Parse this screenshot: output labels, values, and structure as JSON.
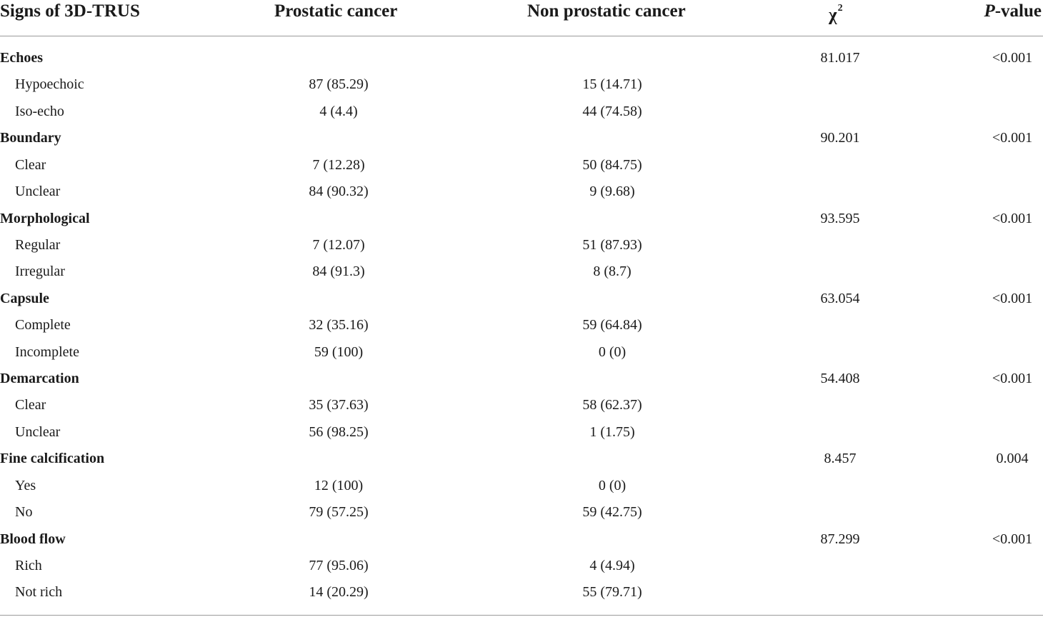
{
  "columns": {
    "signs": "Signs of 3D-TRUS",
    "prostatic": "Prostatic cancer",
    "non_prostatic": "Non prostatic cancer",
    "chi": "χ",
    "chi_sup": "2",
    "p_italic": "P",
    "p_rest": "-value"
  },
  "groups": [
    {
      "label": "Echoes",
      "chi": "81.017",
      "p": "<0.001",
      "rows": [
        {
          "label": "Hypoechoic",
          "pc": "87 (85.29)",
          "npc": "15 (14.71)"
        },
        {
          "label": "Iso-echo",
          "pc": "4 (4.4)",
          "npc": "44 (74.58)"
        }
      ]
    },
    {
      "label": "Boundary",
      "chi": "90.201",
      "p": "<0.001",
      "rows": [
        {
          "label": "Clear",
          "pc": "7 (12.28)",
          "npc": "50 (84.75)"
        },
        {
          "label": "Unclear",
          "pc": "84 (90.32)",
          "npc": "9 (9.68)"
        }
      ]
    },
    {
      "label": "Morphological",
      "chi": "93.595",
      "p": "<0.001",
      "rows": [
        {
          "label": "Regular",
          "pc": "7 (12.07)",
          "npc": "51 (87.93)"
        },
        {
          "label": "Irregular",
          "pc": "84 (91.3)",
          "npc": "8 (8.7)"
        }
      ]
    },
    {
      "label": "Capsule",
      "chi": "63.054",
      "p": "<0.001",
      "rows": [
        {
          "label": "Complete",
          "pc": "32 (35.16)",
          "npc": "59 (64.84)"
        },
        {
          "label": "Incomplete",
          "pc": "59 (100)",
          "npc": "0 (0)"
        }
      ]
    },
    {
      "label": "Demarcation",
      "chi": "54.408",
      "p": "<0.001",
      "rows": [
        {
          "label": "Clear",
          "pc": "35 (37.63)",
          "npc": "58 (62.37)"
        },
        {
          "label": "Unclear",
          "pc": "56 (98.25)",
          "npc": "1 (1.75)"
        }
      ]
    },
    {
      "label": "Fine calcification",
      "chi": "8.457",
      "p": "0.004",
      "rows": [
        {
          "label": "Yes",
          "pc": "12 (100)",
          "npc": "0 (0)"
        },
        {
          "label": "No",
          "pc": "79 (57.25)",
          "npc": "59 (42.75)"
        }
      ]
    },
    {
      "label": "Blood flow",
      "chi": "87.299",
      "p": "<0.001",
      "rows": [
        {
          "label": "Rich",
          "pc": "77 (95.06)",
          "npc": "4 (4.94)"
        },
        {
          "label": "Not rich",
          "pc": "14 (20.29)",
          "npc": "55 (79.71)"
        }
      ]
    }
  ]
}
